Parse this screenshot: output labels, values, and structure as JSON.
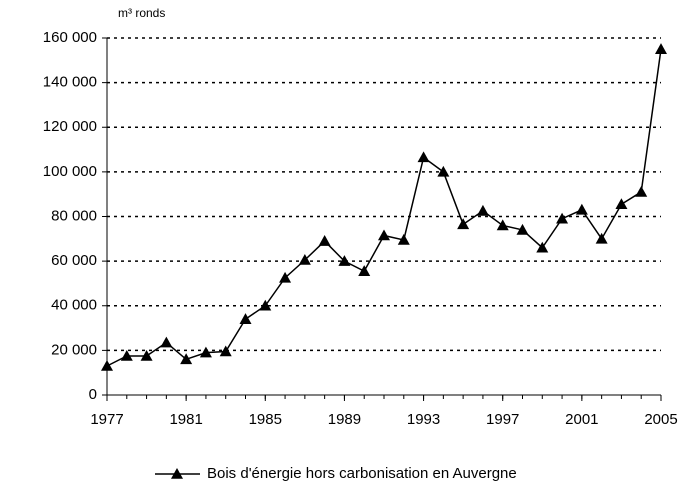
{
  "chart_data": {
    "type": "line",
    "y_unit_label": "m³ ronds",
    "x": [
      1977,
      1978,
      1979,
      1980,
      1981,
      1982,
      1983,
      1984,
      1985,
      1986,
      1987,
      1988,
      1989,
      1990,
      1991,
      1992,
      1993,
      1994,
      1995,
      1996,
      1997,
      1998,
      1999,
      2000,
      2001,
      2002,
      2003,
      2004,
      2005
    ],
    "series": [
      {
        "name": "Bois d'énergie hors carbonisation en Auvergne",
        "color": "#000000",
        "values": [
          13000,
          17500,
          17500,
          23500,
          16000,
          19000,
          19500,
          34000,
          40000,
          52500,
          60500,
          69000,
          60000,
          55500,
          71500,
          69500,
          106500,
          100000,
          76500,
          82500,
          76000,
          74000,
          66000,
          79000,
          83000,
          70000,
          85500,
          91000,
          155000
        ]
      }
    ],
    "xlim": [
      1977,
      2005
    ],
    "xticks": [
      1977,
      1981,
      1985,
      1989,
      1993,
      1997,
      2001,
      2005
    ],
    "ylim": [
      0,
      160000
    ],
    "yticks": [
      0,
      {
        "value": 20000,
        "label": "20 000"
      },
      {
        "value": 40000,
        "label": "40 000"
      },
      {
        "value": 60000,
        "label": "60 000"
      },
      {
        "value": 80000,
        "label": "80 000"
      },
      {
        "value": 100000,
        "label": "100 000"
      },
      {
        "value": 120000,
        "label": "120 000"
      },
      {
        "value": 140000,
        "label": "140 000"
      },
      {
        "value": 160000,
        "label": "160 000"
      }
    ],
    "grid": true,
    "legend": "bottom"
  }
}
